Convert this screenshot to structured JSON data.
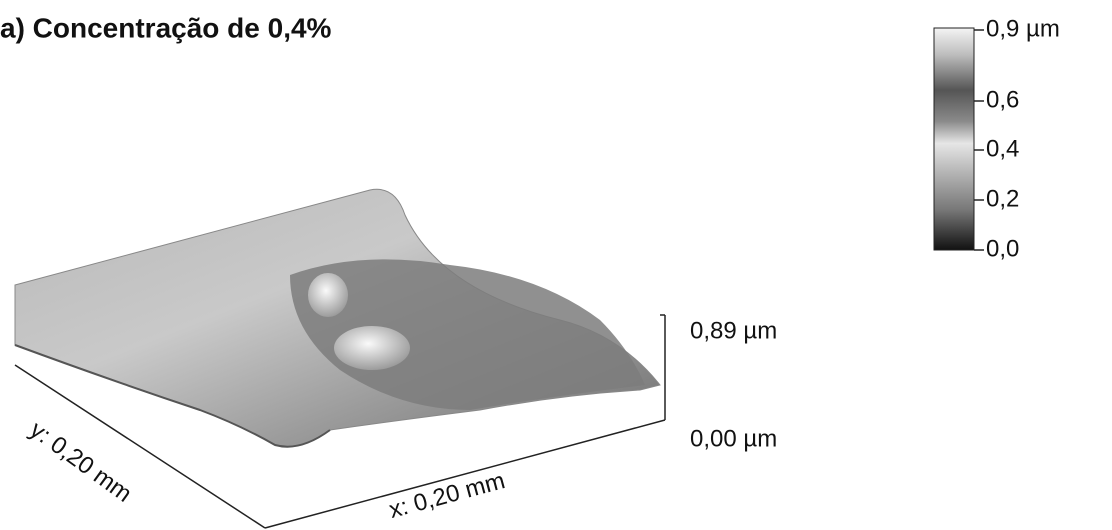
{
  "title": "a) Concentração de 0,4%",
  "colorbar": {
    "labels": [
      "0,9 µm",
      "0,6",
      "0,4",
      "0,2",
      "0,0"
    ]
  },
  "z_axis": {
    "labels": [
      "0,89 µm",
      "0,00 µm"
    ]
  },
  "x_axis": {
    "label": "x: 0,20 mm"
  },
  "y_axis": {
    "label": "y: 0,20 mm"
  }
}
